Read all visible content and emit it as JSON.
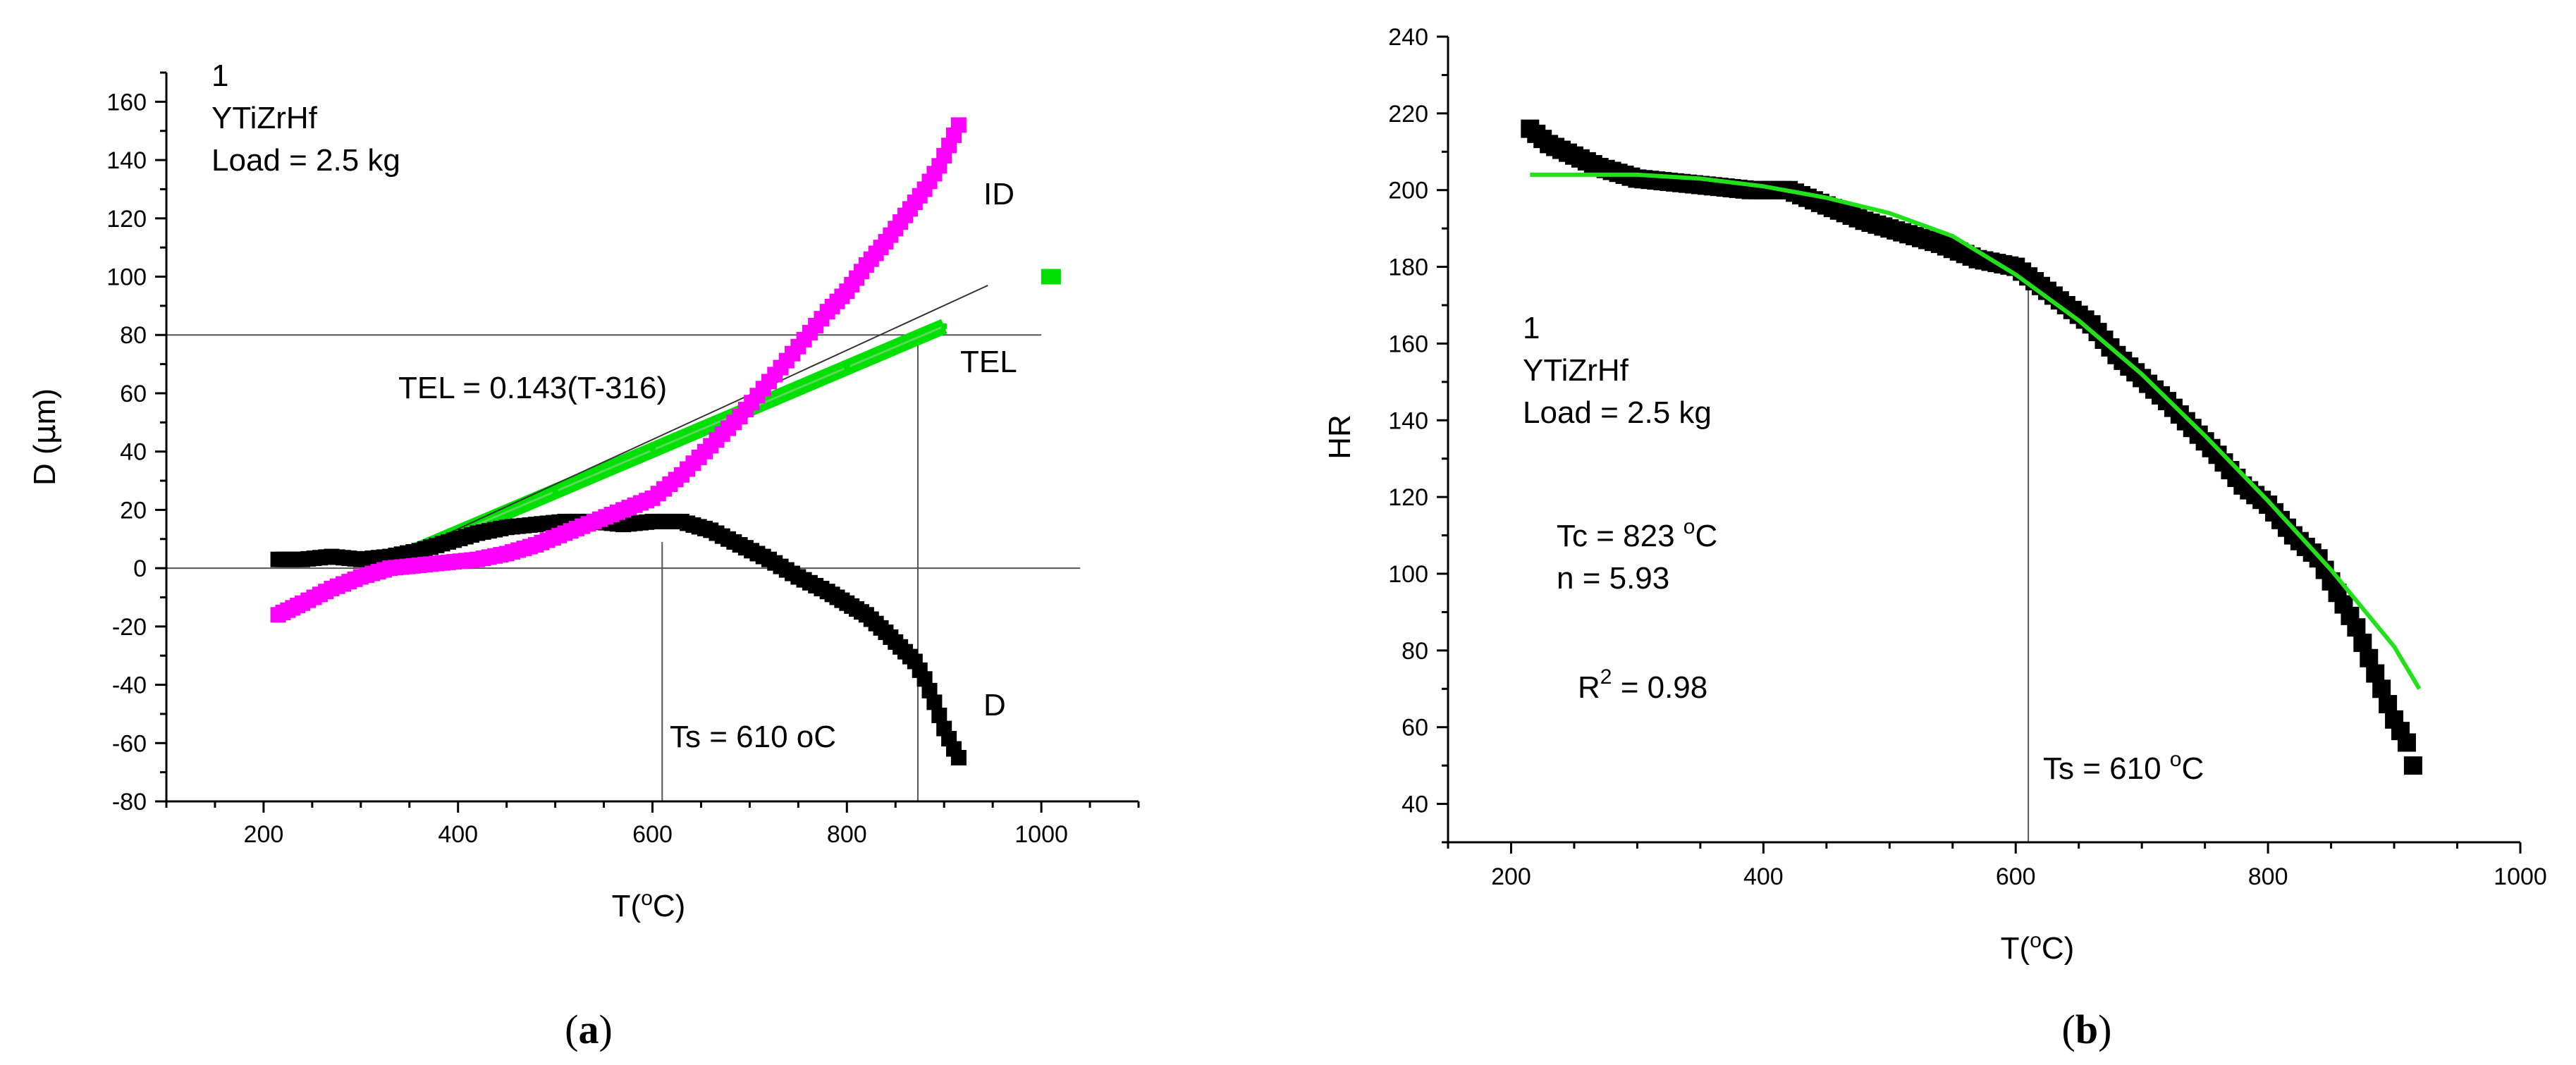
{
  "colors": {
    "d_series": "#000000",
    "id_series": "#ff00ff",
    "tel_series": "#00e000",
    "fit_curve": "#22e01a",
    "hr_series": "#000000",
    "guide_line": "#555555"
  },
  "chart_data": [
    {
      "type": "scatter",
      "panel_label": "a",
      "xlabel": "T(",
      "xlabel_unit": "C)",
      "ylabel": "D (",
      "ylabel_unit": "m)",
      "xlim": [
        100,
        1100
      ],
      "ylim": [
        -80,
        170
      ],
      "x_ticks": [
        200,
        400,
        600,
        800,
        1000
      ],
      "y_ticks": [
        -80,
        -60,
        -40,
        -20,
        0,
        20,
        40,
        60,
        80,
        100,
        120,
        140,
        160
      ],
      "annotations": {
        "line1": "1",
        "line2": "YTiZrHf",
        "line3": "Load = 2.5 kg",
        "tel_eq": "TEL = 0.143(T-316)",
        "ts": "Ts = 610 oC",
        "label_id": "ID",
        "label_tel": "TEL",
        "label_d": "D"
      },
      "reference_lines": {
        "h": [
          0,
          80
        ],
        "v": [
          610,
          873
        ]
      },
      "series": [
        {
          "name": "D",
          "x": [
            215,
            240,
            270,
            300,
            330,
            360,
            390,
            420,
            450,
            480,
            510,
            540,
            570,
            600,
            630,
            660,
            690,
            720,
            750,
            780,
            800,
            820,
            840,
            855,
            870,
            880,
            890,
            900,
            910,
            915
          ],
          "y": [
            3,
            3,
            4,
            3,
            4,
            6,
            9,
            12,
            14,
            15,
            16,
            16,
            15,
            16,
            16,
            13,
            8,
            3,
            -3,
            -8,
            -12,
            -16,
            -22,
            -27,
            -32,
            -38,
            -46,
            -55,
            -62,
            -65
          ]
        },
        {
          "name": "ID",
          "x": [
            215,
            240,
            270,
            300,
            330,
            360,
            390,
            420,
            450,
            480,
            510,
            540,
            570,
            600,
            630,
            660,
            690,
            720,
            750,
            780,
            800,
            820,
            840,
            860,
            880,
            895,
            905,
            915
          ],
          "y": [
            -16,
            -12,
            -7,
            -3,
            0,
            1,
            2,
            3,
            5,
            8,
            12,
            16,
            20,
            24,
            32,
            42,
            52,
            64,
            76,
            88,
            95,
            104,
            112,
            121,
            130,
            138,
            145,
            152
          ]
        },
        {
          "name": "TEL",
          "x": [
            300,
            400,
            500,
            600,
            700,
            800,
            900
          ],
          "y": [
            -2,
            12,
            26,
            41,
            55,
            69,
            83
          ]
        },
        {
          "name": "TEL outlier",
          "x": [
            1010
          ],
          "y": [
            100
          ]
        }
      ]
    },
    {
      "type": "scatter",
      "panel_label": "b",
      "xlabel": "T(",
      "xlabel_unit": "C)",
      "ylabel": "HR",
      "xlim": [
        150,
        1000
      ],
      "ylim": [
        30,
        240
      ],
      "x_ticks": [
        200,
        400,
        600,
        800,
        1000
      ],
      "y_ticks": [
        40,
        60,
        80,
        100,
        120,
        140,
        160,
        180,
        200,
        220,
        240
      ],
      "annotations": {
        "line1": "1",
        "line2": "YTiZrHf",
        "line3": "Load = 2.5 kg",
        "tc": "Tc = 823 ",
        "tc_unit": "C",
        "n": "n = 5.93",
        "r2_prefix": "R",
        "r2_exp": "2",
        "r2_suffix": " = 0.98",
        "ts": "Ts = 610 ",
        "ts_unit": "C"
      },
      "reference_lines": {
        "v": [
          610
        ]
      },
      "series": [
        {
          "name": "HR",
          "x": [
            215,
            230,
            250,
            270,
            300,
            330,
            360,
            390,
            420,
            450,
            480,
            510,
            540,
            570,
            600,
            620,
            640,
            660,
            680,
            700,
            720,
            740,
            760,
            780,
            800,
            820,
            840,
            860,
            870,
            880,
            890,
            900,
            910,
            915
          ],
          "y": [
            216,
            212,
            209,
            206,
            203,
            202,
            201,
            200,
            200,
            196,
            192,
            189,
            186,
            182,
            180,
            175,
            170,
            165,
            157,
            151,
            145,
            138,
            131,
            123,
            118,
            110,
            104,
            92,
            86,
            78,
            70,
            62,
            56,
            50
          ]
        },
        {
          "name": "Fit",
          "x": [
            215,
            250,
            300,
            350,
            400,
            450,
            500,
            550,
            600,
            650,
            700,
            750,
            800,
            850,
            900,
            920
          ],
          "y": [
            204,
            204,
            204,
            203,
            201,
            198,
            194,
            188,
            178,
            166,
            152,
            136,
            119,
            101,
            81,
            70
          ]
        }
      ]
    }
  ]
}
